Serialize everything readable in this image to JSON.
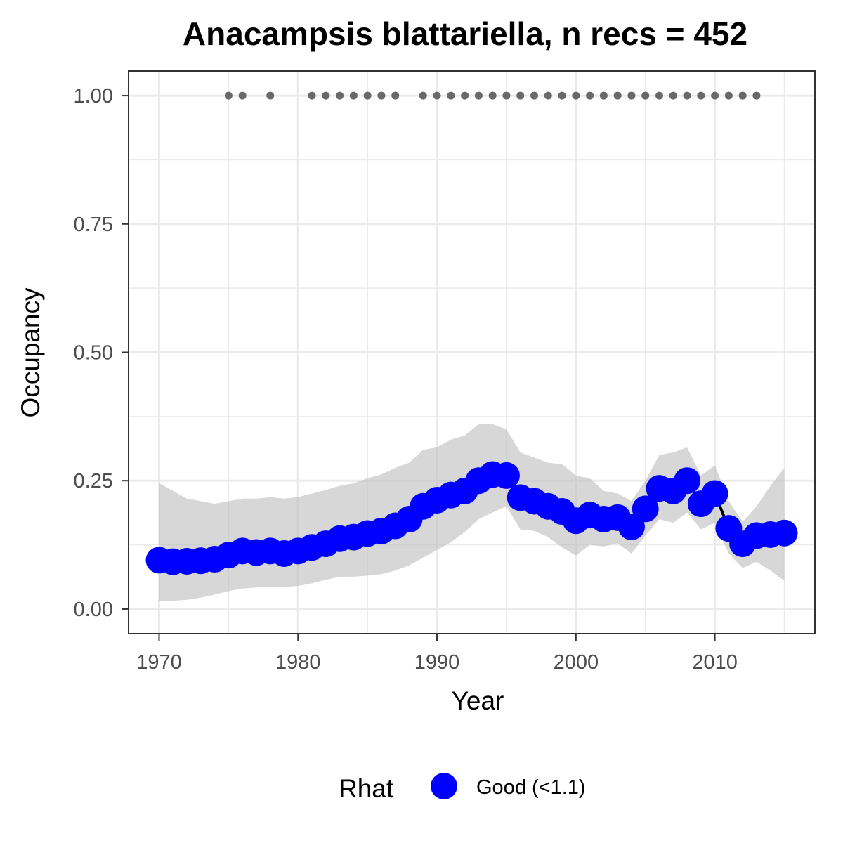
{
  "chart_data": {
    "type": "line",
    "title": "Anacampsis blattariella, n recs = 452",
    "xlabel": "Year",
    "ylabel": "Occupancy",
    "xlim": [
      1967.8,
      2017.2
    ],
    "ylim": [
      -0.048,
      1.048
    ],
    "x_ticks": [
      1970,
      1980,
      1990,
      2000,
      2010
    ],
    "x_tick_labels": [
      "1970",
      "1980",
      "1990",
      "2000",
      "2010"
    ],
    "y_ticks": [
      0,
      0.25,
      0.5,
      0.75,
      1
    ],
    "y_tick_labels": [
      "0.00",
      "0.25",
      "0.50",
      "0.75",
      "1.00"
    ],
    "grid": true,
    "series": [
      {
        "name": "Good (<1.1)",
        "color": "#0000ff",
        "x": [
          1970,
          1971,
          1972,
          1973,
          1974,
          1975,
          1976,
          1977,
          1978,
          1979,
          1980,
          1981,
          1982,
          1983,
          1984,
          1985,
          1986,
          1987,
          1988,
          1989,
          1990,
          1991,
          1992,
          1993,
          1994,
          1995,
          1996,
          1997,
          1998,
          1999,
          2000,
          2001,
          2002,
          2003,
          2004,
          2005,
          2006,
          2007,
          2008,
          2009,
          2010,
          2011,
          2012,
          2013,
          2014,
          2015
        ],
        "y": [
          0.095,
          0.092,
          0.093,
          0.094,
          0.097,
          0.105,
          0.113,
          0.11,
          0.113,
          0.108,
          0.113,
          0.12,
          0.127,
          0.137,
          0.14,
          0.147,
          0.152,
          0.162,
          0.175,
          0.2,
          0.212,
          0.222,
          0.23,
          0.25,
          0.262,
          0.26,
          0.217,
          0.21,
          0.2,
          0.19,
          0.172,
          0.183,
          0.175,
          0.178,
          0.16,
          0.195,
          0.235,
          0.23,
          0.25,
          0.205,
          0.225,
          0.157,
          0.127,
          0.143,
          0.145,
          0.148
        ],
        "lower": [
          0.015,
          0.016,
          0.018,
          0.022,
          0.028,
          0.035,
          0.04,
          0.042,
          0.043,
          0.043,
          0.045,
          0.05,
          0.057,
          0.063,
          0.063,
          0.065,
          0.068,
          0.075,
          0.085,
          0.1,
          0.115,
          0.13,
          0.15,
          0.175,
          0.188,
          0.2,
          0.155,
          0.152,
          0.14,
          0.12,
          0.104,
          0.125,
          0.122,
          0.128,
          0.108,
          0.143,
          0.175,
          0.168,
          0.188,
          0.155,
          0.168,
          0.108,
          0.08,
          0.092,
          0.075,
          0.055
        ],
        "upper": [
          0.245,
          0.23,
          0.215,
          0.21,
          0.205,
          0.21,
          0.215,
          0.215,
          0.218,
          0.215,
          0.218,
          0.225,
          0.232,
          0.24,
          0.245,
          0.255,
          0.262,
          0.275,
          0.285,
          0.31,
          0.315,
          0.33,
          0.338,
          0.36,
          0.36,
          0.35,
          0.305,
          0.295,
          0.285,
          0.282,
          0.26,
          0.255,
          0.23,
          0.225,
          0.21,
          0.25,
          0.3,
          0.305,
          0.315,
          0.26,
          0.28,
          0.21,
          0.17,
          0.2,
          0.24,
          0.275
        ]
      }
    ],
    "record_year_markers": {
      "y": 1,
      "color": "#696969",
      "x": [
        1975,
        1976,
        1978,
        1981,
        1982,
        1983,
        1984,
        1985,
        1986,
        1987,
        1989,
        1990,
        1991,
        1992,
        1993,
        1994,
        1995,
        1996,
        1997,
        1998,
        1999,
        2000,
        2001,
        2002,
        2003,
        2004,
        2005,
        2006,
        2007,
        2008,
        2009,
        2010,
        2011,
        2012,
        2013
      ]
    },
    "legend": {
      "title": "Rhat",
      "position": "bottom",
      "entries": [
        {
          "label": "Good (<1.1)",
          "color": "#0000ff"
        }
      ]
    }
  }
}
